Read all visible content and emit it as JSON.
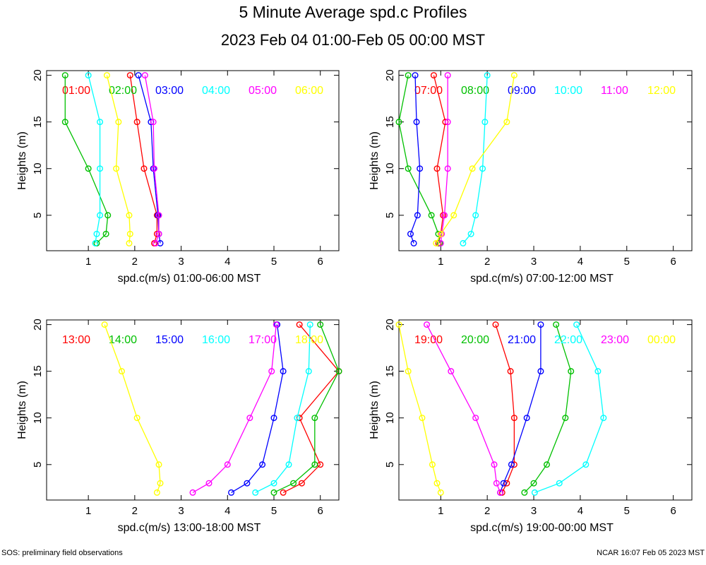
{
  "page": {
    "title": "5 Minute Average spd.c Profiles",
    "subtitle": "2023 Feb 04 01:00-Feb 05 00:00 MST",
    "footer_left": "SOS: preliminary field observations",
    "footer_right": "NCAR 16:07 Feb 05 2023 MST"
  },
  "colors": [
    "#ff0000",
    "#00c000",
    "#0000ff",
    "#00ffff",
    "#ff00ff",
    "#ffff00"
  ],
  "chart_data": [
    {
      "type": "line",
      "xlabel": "spd.c(m/s) 01:00-06:00 MST",
      "ylabel": "Heights (m)",
      "xlim": [
        0.1,
        6.4
      ],
      "ylim": [
        1.2,
        20.5
      ],
      "xticks": [
        1,
        2,
        3,
        4,
        5,
        6
      ],
      "yticks": [
        5,
        10,
        15,
        20
      ],
      "heights": [
        2,
        3,
        5,
        10,
        15,
        20
      ],
      "series": [
        {
          "name": "01:00",
          "values": [
            2.42,
            2.48,
            2.48,
            2.2,
            2.05,
            1.9
          ]
        },
        {
          "name": "02:00",
          "values": [
            1.18,
            1.38,
            1.42,
            1.0,
            0.5,
            0.5
          ]
        },
        {
          "name": "03:00",
          "values": [
            2.55,
            2.52,
            2.5,
            2.4,
            2.35,
            2.08
          ]
        },
        {
          "name": "04:00",
          "values": [
            1.15,
            1.18,
            1.25,
            1.25,
            1.25,
            1.0
          ]
        },
        {
          "name": "05:00",
          "values": [
            2.45,
            2.52,
            2.52,
            2.42,
            2.4,
            2.22
          ]
        },
        {
          "name": "06:00",
          "values": [
            1.88,
            1.9,
            1.88,
            1.6,
            1.65,
            1.4
          ]
        }
      ]
    },
    {
      "type": "line",
      "xlabel": "spd.c(m/s) 07:00-12:00 MST",
      "ylabel": "Heights (m)",
      "xlim": [
        0.1,
        6.4
      ],
      "ylim": [
        1.2,
        20.5
      ],
      "xticks": [
        1,
        2,
        3,
        4,
        5,
        6
      ],
      "yticks": [
        5,
        10,
        15,
        20
      ],
      "heights": [
        2,
        3,
        5,
        10,
        15,
        20
      ],
      "series": [
        {
          "name": "07:00",
          "values": [
            0.95,
            1.0,
            1.05,
            0.92,
            1.1,
            0.85
          ]
        },
        {
          "name": "08:00",
          "values": [
            0.98,
            0.95,
            0.8,
            0.3,
            0.1,
            0.3
          ]
        },
        {
          "name": "09:00",
          "values": [
            0.42,
            0.35,
            0.5,
            0.55,
            0.48,
            0.45
          ]
        },
        {
          "name": "10:00",
          "values": [
            1.48,
            1.65,
            1.75,
            1.9,
            1.95,
            2.0
          ]
        },
        {
          "name": "11:00",
          "values": [
            1.0,
            1.02,
            1.08,
            1.15,
            1.15,
            1.15
          ]
        },
        {
          "name": "12:00",
          "values": [
            0.9,
            1.0,
            1.28,
            1.68,
            2.42,
            2.58
          ]
        }
      ]
    },
    {
      "type": "line",
      "xlabel": "spd.c(m/s) 13:00-18:00 MST",
      "ylabel": "Heights (m)",
      "xlim": [
        0.1,
        6.4
      ],
      "ylim": [
        1.2,
        20.5
      ],
      "xticks": [
        1,
        2,
        3,
        4,
        5,
        6
      ],
      "yticks": [
        5,
        10,
        15,
        20
      ],
      "heights": [
        2,
        3,
        5,
        10,
        15,
        20
      ],
      "series": [
        {
          "name": "13:00",
          "values": [
            5.2,
            5.6,
            6.0,
            5.55,
            6.4,
            5.55
          ]
        },
        {
          "name": "14:00",
          "values": [
            5.0,
            5.42,
            5.88,
            5.88,
            6.4,
            6.0
          ]
        },
        {
          "name": "15:00",
          "values": [
            4.08,
            4.42,
            4.75,
            5.0,
            5.2,
            5.07
          ]
        },
        {
          "name": "16:00",
          "values": [
            4.6,
            5.0,
            5.32,
            5.5,
            5.75,
            5.78
          ]
        },
        {
          "name": "17:00",
          "values": [
            3.25,
            3.6,
            4.0,
            4.48,
            4.95,
            5.05
          ]
        },
        {
          "name": "18:00",
          "values": [
            2.48,
            2.55,
            2.52,
            2.05,
            1.72,
            1.35
          ]
        }
      ]
    },
    {
      "type": "line",
      "xlabel": "spd.c(m/s) 19:00-00:00 MST",
      "ylabel": "Heights (m)",
      "xlim": [
        0.1,
        6.4
      ],
      "ylim": [
        1.2,
        20.5
      ],
      "xticks": [
        1,
        2,
        3,
        4,
        5,
        6
      ],
      "yticks": [
        5,
        10,
        15,
        20
      ],
      "heights": [
        2,
        3,
        5,
        10,
        15,
        20
      ],
      "series": [
        {
          "name": "19:00",
          "values": [
            2.32,
            2.42,
            2.58,
            2.58,
            2.5,
            2.18
          ]
        },
        {
          "name": "20:00",
          "values": [
            2.8,
            3.0,
            3.28,
            3.68,
            3.8,
            3.48
          ]
        },
        {
          "name": "21:00",
          "values": [
            2.28,
            2.35,
            2.52,
            2.85,
            3.15,
            3.15
          ]
        },
        {
          "name": "22:00",
          "values": [
            3.02,
            3.55,
            4.12,
            4.5,
            4.38,
            3.92
          ]
        },
        {
          "name": "23:00",
          "values": [
            2.28,
            2.2,
            2.15,
            1.75,
            1.22,
            0.7
          ]
        },
        {
          "name": "00:00",
          "values": [
            1.0,
            0.92,
            0.82,
            0.6,
            0.3,
            0.1
          ]
        }
      ]
    }
  ]
}
